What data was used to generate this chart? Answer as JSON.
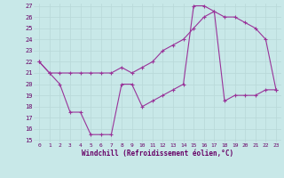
{
  "xlabel": "Windchill (Refroidissement éolien,°C)",
  "line1_x": [
    0,
    1,
    2,
    3,
    4,
    5,
    6,
    7,
    8,
    9,
    10,
    11,
    12,
    13,
    14,
    15,
    16,
    17,
    18,
    19,
    20,
    21,
    22,
    23
  ],
  "line1_y": [
    22,
    21,
    21,
    21,
    21,
    21,
    21,
    21,
    21.5,
    21,
    21.5,
    22,
    23,
    23.5,
    24,
    25,
    26,
    26.5,
    26,
    26,
    25.5,
    25,
    24,
    19.5
  ],
  "line2_x": [
    0,
    1,
    2,
    3,
    4,
    5,
    6,
    7,
    8,
    9,
    10,
    11,
    12,
    13,
    14,
    15,
    16,
    17,
    18,
    19,
    20,
    21,
    22,
    23
  ],
  "line2_y": [
    22,
    21,
    20,
    17.5,
    17.5,
    15.5,
    15.5,
    15.5,
    20,
    20,
    18,
    18.5,
    19,
    19.5,
    20,
    27,
    27,
    26.5,
    18.5,
    19,
    19,
    19,
    19.5,
    19.5
  ],
  "line_color": "#993399",
  "bg_color": "#c8e8e8",
  "grid_color": "#aacccc",
  "xlim": [
    -0.5,
    23.5
  ],
  "ylim": [
    15,
    27
  ],
  "xticks": [
    0,
    1,
    2,
    3,
    4,
    5,
    6,
    7,
    8,
    9,
    10,
    11,
    12,
    13,
    14,
    15,
    16,
    17,
    18,
    19,
    20,
    21,
    22,
    23
  ],
  "yticks": [
    15,
    16,
    17,
    18,
    19,
    20,
    21,
    22,
    23,
    24,
    25,
    26,
    27
  ]
}
